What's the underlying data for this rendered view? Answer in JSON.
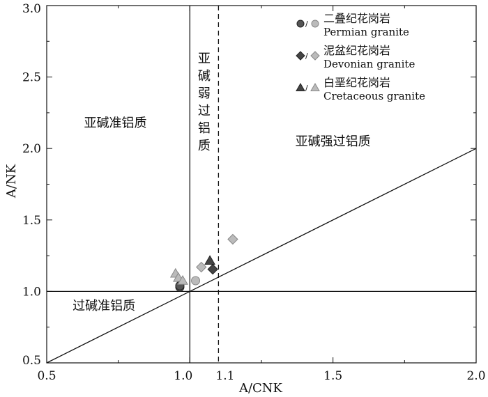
{
  "chart_data": {
    "type": "scatter",
    "title": "",
    "xlabel": "A/CNK",
    "ylabel": "A/NK",
    "xlim": [
      0.5,
      2.0
    ],
    "ylim": [
      0.5,
      3.0
    ],
    "x_ticks": [
      "0.5",
      "1.0",
      "1.1",
      "1.5",
      "2.0"
    ],
    "x_tick_values": [
      0.5,
      1.0,
      1.1,
      1.5,
      2.0
    ],
    "y_ticks": [
      "0.5",
      "1.0",
      "1.5",
      "2.0",
      "2.5",
      "3.0"
    ],
    "y_tick_values": [
      0.5,
      1.0,
      1.5,
      2.0,
      2.5,
      3.0
    ],
    "grid": false,
    "legend_position": "top-right",
    "reference_lines": [
      {
        "kind": "vertical",
        "x": 1.0,
        "style": "solid"
      },
      {
        "kind": "vertical",
        "x": 1.1,
        "style": "dashed"
      },
      {
        "kind": "horizontal",
        "y": 1.0,
        "style": "solid"
      },
      {
        "kind": "line",
        "from": [
          0.5,
          0.5
        ],
        "to": [
          2.0,
          2.0
        ],
        "style": "solid"
      }
    ],
    "regions": [
      {
        "id": "metaluminous",
        "label": "亚碱准铝质",
        "at": [
          0.74,
          2.15
        ]
      },
      {
        "id": "weak-peraluminous",
        "label_chars": [
          "亚",
          "碱",
          "弱",
          "过",
          "铝",
          "质"
        ],
        "at": [
          1.05,
          2.6
        ]
      },
      {
        "id": "strong-peraluminous",
        "label": "亚碱强过铝质",
        "at": [
          1.5,
          2.02
        ]
      },
      {
        "id": "peralkaline",
        "label": "过碱准铝质",
        "at": [
          0.7,
          0.87
        ]
      }
    ],
    "series": [
      {
        "name": "二叠纪花岗岩",
        "name_en": "Permian granite",
        "marker": "circle",
        "color_dark": "#555555",
        "color_light": "#bbbbbb",
        "points_dark": [
          {
            "x": 0.965,
            "y": 1.03
          },
          {
            "x": 0.965,
            "y": 1.04
          }
        ],
        "points_light": [
          {
            "x": 1.02,
            "y": 1.075
          }
        ]
      },
      {
        "name": "泥盆纪花岗岩",
        "name_en": "Devonian granite",
        "marker": "diamond",
        "color_dark": "#444444",
        "color_light": "#bbbbbb",
        "points_dark": [
          {
            "x": 1.08,
            "y": 1.155
          }
        ],
        "points_light": [
          {
            "x": 1.04,
            "y": 1.17
          },
          {
            "x": 1.15,
            "y": 1.365
          }
        ]
      },
      {
        "name": "白垩纪花岗岩",
        "name_en": "Cretaceous granite",
        "marker": "triangle",
        "color_dark": "#444444",
        "color_light": "#bbbbbb",
        "points_dark": [
          {
            "x": 1.07,
            "y": 1.215
          }
        ],
        "points_light": [
          {
            "x": 0.95,
            "y": 1.125
          },
          {
            "x": 0.96,
            "y": 1.095
          },
          {
            "x": 0.975,
            "y": 1.075
          }
        ]
      }
    ],
    "legend_separator": "/"
  }
}
